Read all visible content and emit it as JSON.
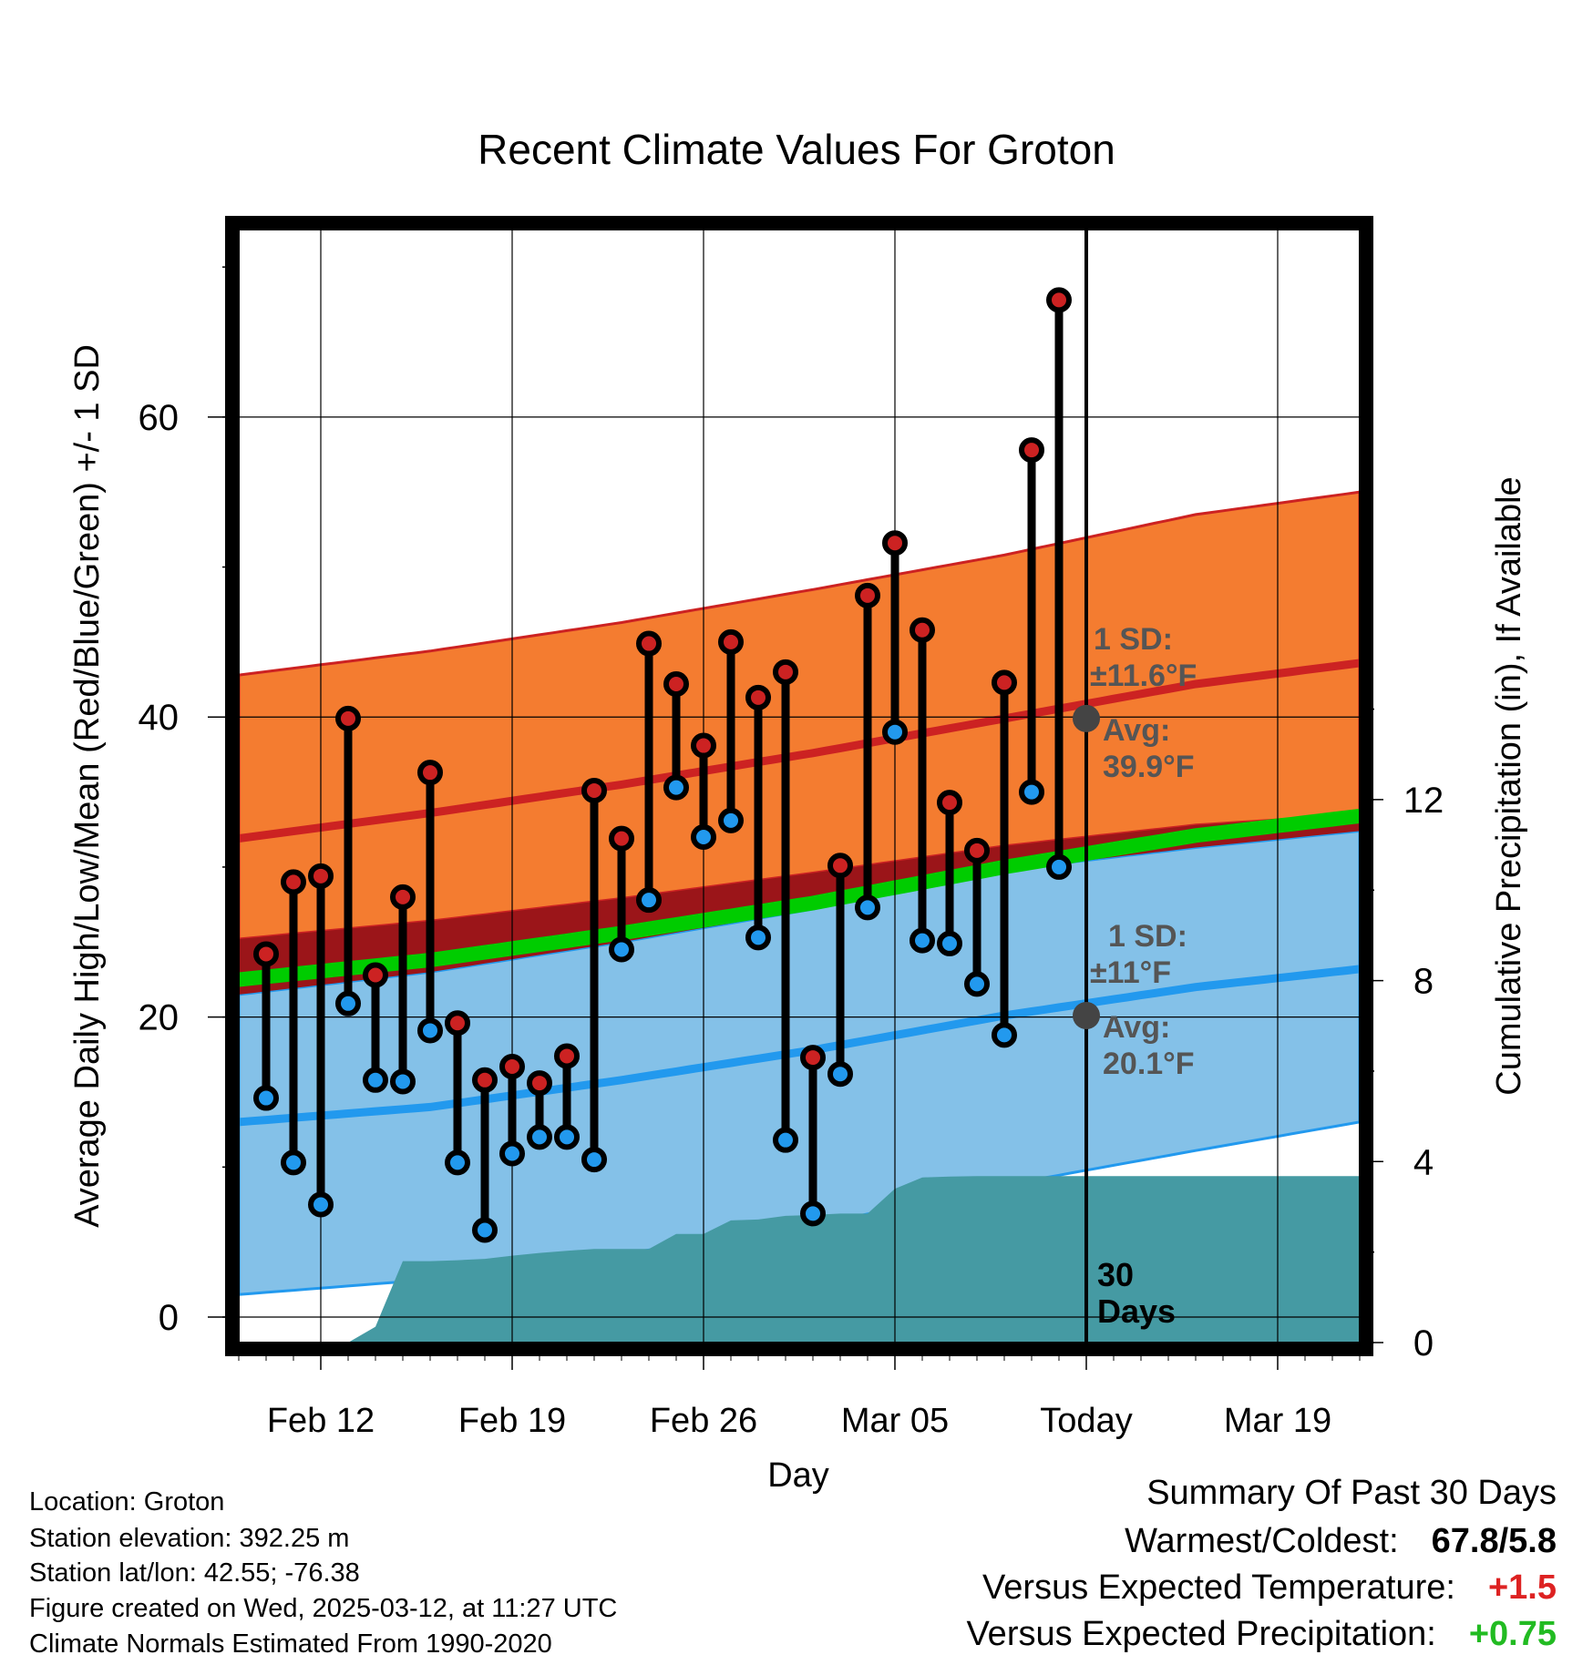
{
  "chart_data": {
    "type": "line",
    "title": "Recent Climate Values For Groton",
    "xlabel": "Day",
    "ylabel_left": "Average Daily High/Low/Mean (Red/Blue/Green) +/- 1 SD",
    "ylabel_right": "Cumulative Precipitation (in), If Available",
    "x_tick_labels": [
      "Feb 12",
      "Feb 19",
      "Feb 26",
      "Mar 05",
      "Today",
      "Mar 19"
    ],
    "x_tick_dates": [
      "2025-02-12",
      "2025-02-19",
      "2025-02-26",
      "2025-03-05",
      "2025-03-12",
      "2025-03-19"
    ],
    "x_range": [
      "2025-02-09",
      "2025-03-22"
    ],
    "y_left_ticks": [
      0,
      20,
      40,
      60
    ],
    "y_left_range": [
      -1.7,
      72.5
    ],
    "y_right_ticks": [
      0,
      4,
      8,
      12
    ],
    "y_right_range": [
      0,
      24.6
    ],
    "grid": true,
    "today_marker": {
      "date": "2025-03-12",
      "label_line1": "30",
      "label_line2": "Days"
    },
    "daily_observations": {
      "dates": [
        "2025-02-10",
        "2025-02-11",
        "2025-02-12",
        "2025-02-13",
        "2025-02-14",
        "2025-02-15",
        "2025-02-16",
        "2025-02-17",
        "2025-02-18",
        "2025-02-19",
        "2025-02-20",
        "2025-02-21",
        "2025-02-22",
        "2025-02-23",
        "2025-02-24",
        "2025-02-25",
        "2025-02-26",
        "2025-02-27",
        "2025-02-28",
        "2025-03-01",
        "2025-03-02",
        "2025-03-03",
        "2025-03-04",
        "2025-03-05",
        "2025-03-06",
        "2025-03-07",
        "2025-03-08",
        "2025-03-09",
        "2025-03-10",
        "2025-03-11"
      ],
      "high": [
        24.2,
        29.0,
        29.4,
        39.9,
        22.8,
        28.0,
        36.3,
        19.6,
        15.8,
        16.7,
        15.6,
        17.4,
        35.1,
        31.9,
        44.9,
        42.2,
        38.1,
        45.0,
        41.3,
        43.0,
        17.3,
        30.1,
        48.1,
        51.6,
        45.8,
        34.3,
        31.1,
        42.3,
        57.8,
        67.8
      ],
      "low": [
        14.6,
        10.3,
        7.5,
        20.9,
        15.8,
        15.7,
        19.1,
        10.3,
        5.8,
        10.9,
        12.0,
        12.0,
        10.5,
        24.5,
        27.8,
        35.3,
        32.0,
        33.1,
        25.3,
        11.8,
        6.9,
        16.2,
        27.3,
        39.0,
        25.1,
        24.9,
        22.2,
        18.8,
        35.0,
        30.0
      ],
      "high_color": "#cc2222",
      "low_color": "#2299ee"
    },
    "normals": {
      "dates": [
        "2025-02-09",
        "2025-02-16",
        "2025-02-23",
        "2025-03-02",
        "2025-03-09",
        "2025-03-16",
        "2025-03-22"
      ],
      "avg_high": [
        31.9,
        33.6,
        35.5,
        37.6,
        39.9,
        42.2,
        43.6
      ],
      "high_plus_1sd": [
        42.8,
        44.4,
        46.3,
        48.5,
        50.8,
        53.5,
        55.0
      ],
      "high_minus_1sd": [
        25.2,
        26.4,
        27.9,
        29.6,
        31.4,
        32.8,
        33.5
      ],
      "avg_low": [
        13.0,
        14.0,
        15.8,
        17.8,
        20.1,
        22.0,
        23.2
      ],
      "low_plus_1sd": [
        21.5,
        23.0,
        25.0,
        27.2,
        29.8,
        31.3,
        32.4
      ],
      "low_minus_1sd": [
        1.5,
        2.5,
        4.2,
        6.1,
        8.8,
        11.1,
        13.0
      ],
      "avg_mean": [
        22.5,
        23.8,
        25.6,
        27.6,
        30.0,
        32.1,
        33.4
      ],
      "high_color": "#cc2222",
      "low_color": "#2299ee",
      "mean_color": "#00cc00",
      "high_band_color": "#f47c30",
      "low_band_color": "#84c1e8",
      "overlap_color": "#9b1519"
    },
    "annotations": {
      "high": {
        "date": "2025-03-12",
        "value": 39.9,
        "sd_label": "1 SD:",
        "sd_value": "±11.6°F",
        "avg_label": "Avg:",
        "avg_value": "39.9°F"
      },
      "low": {
        "date": "2025-03-12",
        "value": 20.1,
        "sd_label": "1 SD:",
        "sd_value": "±11°F",
        "avg_label": "Avg:",
        "avg_value": "20.1°F"
      },
      "color": "#555555"
    },
    "cumulative_precipitation": {
      "dates": [
        "2025-02-11",
        "2025-02-13",
        "2025-02-14",
        "2025-02-15",
        "2025-02-16",
        "2025-02-17",
        "2025-02-18",
        "2025-02-19",
        "2025-02-20",
        "2025-02-21",
        "2025-02-22",
        "2025-02-23",
        "2025-02-24",
        "2025-02-25",
        "2025-02-26",
        "2025-02-27",
        "2025-02-28",
        "2025-03-01",
        "2025-03-02",
        "2025-03-03",
        "2025-03-04",
        "2025-03-05",
        "2025-03-06",
        "2025-03-07",
        "2025-03-08",
        "2025-03-09",
        "2025-03-10",
        "2025-03-11",
        "2025-03-12",
        "2025-03-22"
      ],
      "values": [
        0.0,
        0.0,
        0.35,
        1.8,
        1.8,
        1.82,
        1.85,
        1.92,
        1.98,
        2.03,
        2.07,
        2.07,
        2.07,
        2.4,
        2.4,
        2.7,
        2.72,
        2.8,
        2.82,
        2.85,
        2.85,
        3.4,
        3.65,
        3.67,
        3.68,
        3.68,
        3.68,
        3.68,
        3.68,
        3.68
      ],
      "color": "#459aa3"
    }
  },
  "station_info": {
    "location": "Location: Groton",
    "elevation": "Station elevation: 392.25 m",
    "latlon": "Station lat/lon: 42.55; -76.38",
    "created": "Figure created on Wed, 2025-03-12, at 11:27 UTC",
    "normals": "Climate Normals Estimated From 1990-2020"
  },
  "summary": {
    "title": "Summary Of Past 30 Days",
    "warmest_coldest_label": "Warmest/Coldest:",
    "warmest_coldest_value": "67.8/5.8",
    "temp_label": "Versus Expected Temperature:",
    "temp_value": "+1.5",
    "temp_color": "#dd2222",
    "precip_label": "Versus Expected Precipitation:",
    "precip_value": "+0.75",
    "precip_color": "#22bb22"
  }
}
